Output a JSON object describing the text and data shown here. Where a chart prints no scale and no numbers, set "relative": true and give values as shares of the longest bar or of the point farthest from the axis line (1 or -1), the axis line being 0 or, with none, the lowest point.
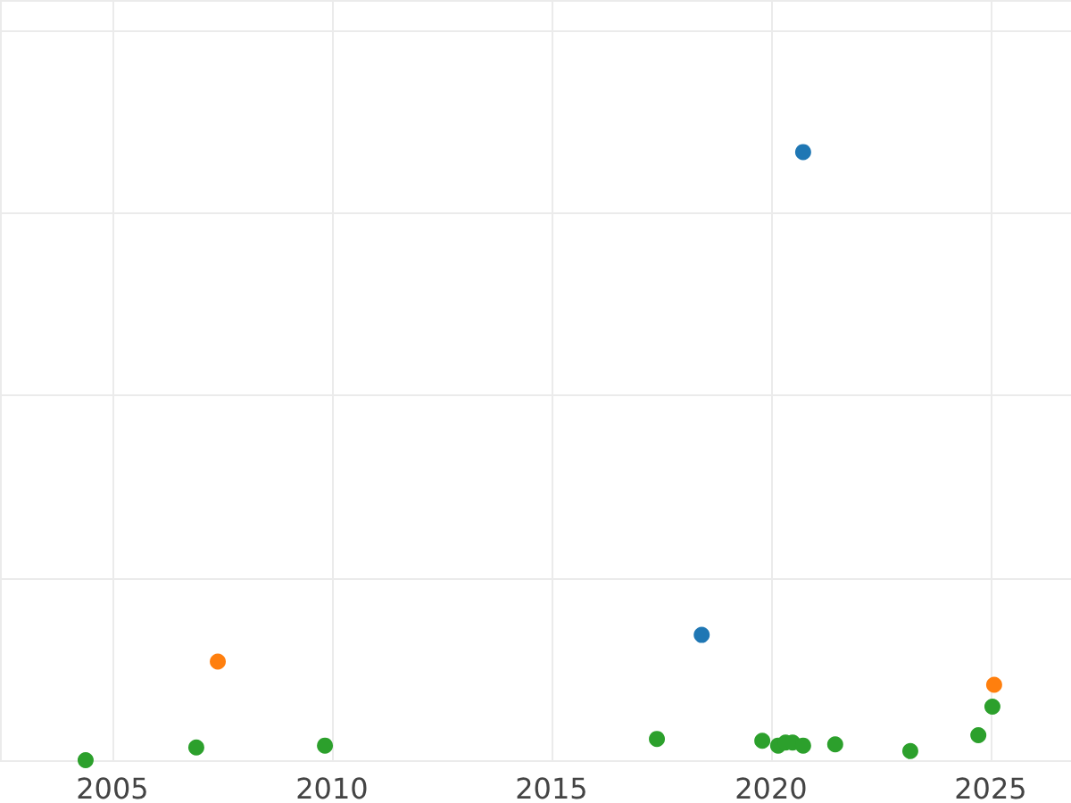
{
  "chart_data": {
    "type": "scatter",
    "relative": true,
    "grid": true,
    "marker": "circle",
    "xlim": [
      2002.44,
      2026.83
    ],
    "xticks": [
      2005,
      2010,
      2015,
      2020,
      2025
    ],
    "series": [
      {
        "color": "#1f77b4",
        "x": [
          2020.73,
          2018.42
        ],
        "values": [
          1,
          0.206
        ]
      },
      {
        "color": "#ff7f0e",
        "x": [
          2007.4,
          2025.08
        ],
        "values": [
          0.162,
          0.124
        ]
      },
      {
        "color": "#2ca02c",
        "x": [
          2004.39,
          2006.91,
          2009.84,
          2017.4,
          2019.8,
          2020.16,
          2020.33,
          2020.49,
          2020.73,
          2021.46,
          2023.17,
          2024.72,
          2025.04
        ],
        "values": [
          0,
          0.021,
          0.024,
          0.035,
          0.032,
          0.024,
          0.029,
          0.029,
          0.024,
          0.026,
          0.015,
          0.041,
          0.088
        ]
      }
    ]
  }
}
